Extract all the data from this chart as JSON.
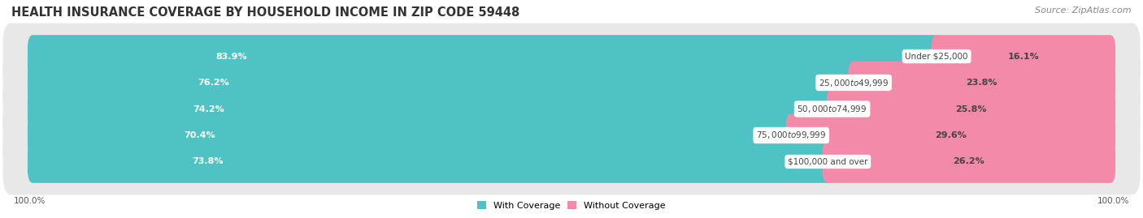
{
  "title": "HEALTH INSURANCE COVERAGE BY HOUSEHOLD INCOME IN ZIP CODE 59448",
  "source": "Source: ZipAtlas.com",
  "categories": [
    "Under $25,000",
    "$25,000 to $49,999",
    "$50,000 to $74,999",
    "$75,000 to $99,999",
    "$100,000 and over"
  ],
  "with_coverage": [
    83.9,
    76.2,
    74.2,
    70.4,
    73.8
  ],
  "without_coverage": [
    16.1,
    23.8,
    25.8,
    29.6,
    26.2
  ],
  "color_with": "#4fc3c3",
  "color_without": "#f48aaa",
  "color_row_bg": "#e8e8e8",
  "color_fig_bg": "#ffffff",
  "title_fontsize": 10.5,
  "source_fontsize": 8,
  "bar_label_fontsize": 8,
  "cat_label_fontsize": 7.5,
  "axis_label_fontsize": 7.5,
  "legend_fontsize": 8
}
